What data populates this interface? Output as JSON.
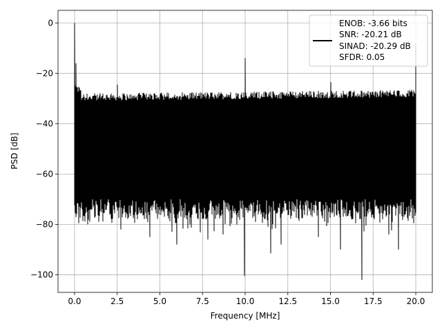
{
  "chart_data": {
    "type": "line",
    "xlabel": "Frequency [MHz]",
    "ylabel": "PSD [dB]",
    "xlim": [
      -0.97,
      20.97
    ],
    "ylim": [
      -107,
      5
    ],
    "xticks": [
      0.0,
      2.5,
      5.0,
      7.5,
      10.0,
      12.5,
      15.0,
      17.5,
      20.0
    ],
    "xtick_labels": [
      "0.0",
      "2.5",
      "5.0",
      "7.5",
      "10.0",
      "12.5",
      "15.0",
      "17.5",
      "20.0"
    ],
    "yticks": [
      0,
      -20,
      -40,
      -60,
      -80,
      -100
    ],
    "ytick_labels": [
      "0",
      "−20",
      "−40",
      "−60",
      "−80",
      "−100"
    ],
    "grid": true,
    "legend_position": "upper-right",
    "legend_lines": [
      "ENOB: -3.66 bits",
      "SNR: -20.21 dB",
      "SINAD: -20.29 dB",
      "SFDR: 0.05"
    ],
    "series": [
      {
        "color": "#000000",
        "noise_floor_top": -28,
        "noise_floor_bottom": -70,
        "peaks": [
          {
            "x": 0.0,
            "y": 0
          },
          {
            "x": 10.0,
            "y": -14
          },
          {
            "x": 20.0,
            "y": -8
          },
          {
            "x": 2.5,
            "y": -24.5
          },
          {
            "x": 15.0,
            "y": -23.5
          },
          {
            "x": 0.08,
            "y": -16
          }
        ],
        "dips": [
          {
            "x": 0.75,
            "y": -80
          },
          {
            "x": 1.4,
            "y": -79
          },
          {
            "x": 2.7,
            "y": -82
          },
          {
            "x": 4.4,
            "y": -85
          },
          {
            "x": 6.0,
            "y": -88
          },
          {
            "x": 7.8,
            "y": -86
          },
          {
            "x": 8.7,
            "y": -84
          },
          {
            "x": 9.95,
            "y": -100.5
          },
          {
            "x": 11.5,
            "y": -91.5
          },
          {
            "x": 12.1,
            "y": -88
          },
          {
            "x": 14.3,
            "y": -85
          },
          {
            "x": 15.6,
            "y": -90
          },
          {
            "x": 16.85,
            "y": -102
          },
          {
            "x": 19.0,
            "y": -90
          },
          {
            "x": 18.4,
            "y": -84
          }
        ]
      }
    ]
  }
}
